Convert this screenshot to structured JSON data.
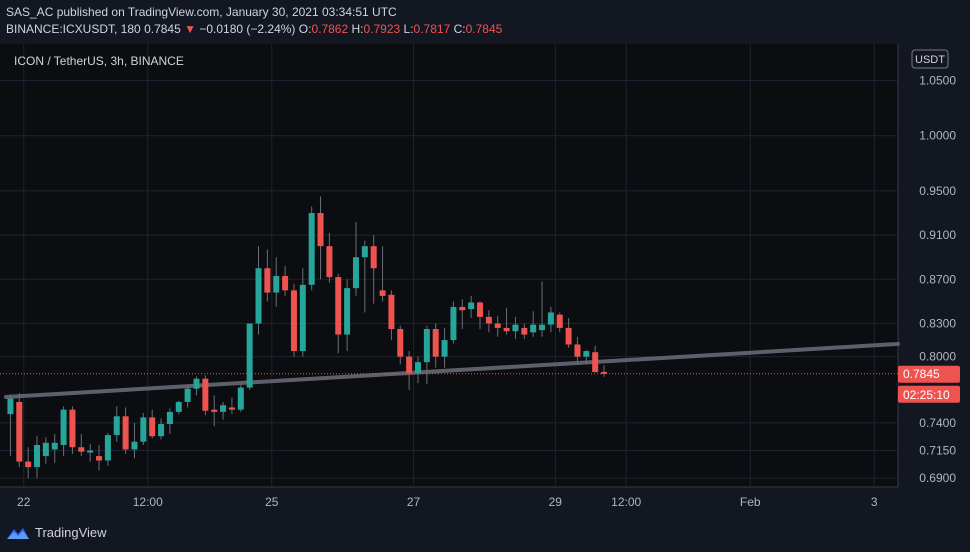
{
  "header": {
    "line1": "SAS_AC published on TradingView.com, January 30, 2021 03:34:51 UTC",
    "symbol": "BINANCE:ICXUSDT, 180",
    "last": "0.7845",
    "change_arrow": "▼",
    "change": "−0.0180 (−2.24%)",
    "o_label": "O:",
    "o_val": "0.7862",
    "h_label": "H:",
    "h_val": "0.7923",
    "l_label": "L:",
    "l_val": "0.7817",
    "c_label": "C:",
    "c_val": "0.7845"
  },
  "chart_data": {
    "type": "candlestick",
    "title": "ICON / TetherUS, 3h, BINANCE",
    "currency_badge": "USDT",
    "price_ticks": [
      "1.0500",
      "1.0000",
      "0.9500",
      "0.9100",
      "0.8700",
      "0.8300",
      "0.8000",
      "0.7400",
      "0.7150",
      "0.6900"
    ],
    "price_tick_values": [
      1.05,
      1.0,
      0.95,
      0.91,
      0.87,
      0.83,
      0.8,
      0.74,
      0.715,
      0.69
    ],
    "time_ticks": [
      "22",
      "12:00",
      "25",
      "27",
      "29",
      "12:00",
      "Feb",
      "3"
    ],
    "time_tick_index": [
      2,
      16,
      30,
      46,
      62,
      70,
      84,
      98
    ],
    "last_price_label": "0.7845",
    "countdown_label": "02:25:10",
    "last_price": 0.7845,
    "y_range": [
      0.682,
      1.083
    ],
    "x_range": [
      0,
      100
    ],
    "bull_color": "#26a69a",
    "bear_color": "#ef5350",
    "trendline": {
      "from": [
        0,
        0.7635
      ],
      "to": [
        100,
        0.8115
      ],
      "color": "#5d606b"
    },
    "candles": [
      {
        "i": 0.5,
        "o": 0.748,
        "h": 0.766,
        "l": 0.71,
        "c": 0.762
      },
      {
        "i": 1.5,
        "o": 0.759,
        "h": 0.767,
        "l": 0.7,
        "c": 0.705
      },
      {
        "i": 2.5,
        "o": 0.705,
        "h": 0.718,
        "l": 0.69,
        "c": 0.7
      },
      {
        "i": 3.5,
        "o": 0.7,
        "h": 0.728,
        "l": 0.69,
        "c": 0.72
      },
      {
        "i": 4.5,
        "o": 0.71,
        "h": 0.727,
        "l": 0.703,
        "c": 0.722
      },
      {
        "i": 5.5,
        "o": 0.716,
        "h": 0.73,
        "l": 0.704,
        "c": 0.722
      },
      {
        "i": 6.5,
        "o": 0.72,
        "h": 0.755,
        "l": 0.71,
        "c": 0.752
      },
      {
        "i": 7.5,
        "o": 0.752,
        "h": 0.755,
        "l": 0.712,
        "c": 0.718
      },
      {
        "i": 8.5,
        "o": 0.718,
        "h": 0.73,
        "l": 0.71,
        "c": 0.714
      },
      {
        "i": 9.5,
        "o": 0.714,
        "h": 0.721,
        "l": 0.705,
        "c": 0.715
      },
      {
        "i": 10.5,
        "o": 0.71,
        "h": 0.72,
        "l": 0.697,
        "c": 0.706
      },
      {
        "i": 11.5,
        "o": 0.706,
        "h": 0.731,
        "l": 0.701,
        "c": 0.729
      },
      {
        "i": 12.5,
        "o": 0.729,
        "h": 0.755,
        "l": 0.723,
        "c": 0.746
      },
      {
        "i": 13.5,
        "o": 0.746,
        "h": 0.754,
        "l": 0.712,
        "c": 0.716
      },
      {
        "i": 14.5,
        "o": 0.716,
        "h": 0.74,
        "l": 0.708,
        "c": 0.723
      },
      {
        "i": 15.5,
        "o": 0.723,
        "h": 0.749,
        "l": 0.72,
        "c": 0.745
      },
      {
        "i": 16.5,
        "o": 0.745,
        "h": 0.752,
        "l": 0.726,
        "c": 0.728
      },
      {
        "i": 17.5,
        "o": 0.728,
        "h": 0.744,
        "l": 0.725,
        "c": 0.739
      },
      {
        "i": 18.5,
        "o": 0.739,
        "h": 0.753,
        "l": 0.73,
        "c": 0.75
      },
      {
        "i": 19.5,
        "o": 0.75,
        "h": 0.76,
        "l": 0.748,
        "c": 0.759
      },
      {
        "i": 20.5,
        "o": 0.759,
        "h": 0.775,
        "l": 0.754,
        "c": 0.771
      },
      {
        "i": 21.5,
        "o": 0.771,
        "h": 0.782,
        "l": 0.765,
        "c": 0.78
      },
      {
        "i": 22.5,
        "o": 0.78,
        "h": 0.783,
        "l": 0.747,
        "c": 0.751
      },
      {
        "i": 23.5,
        "o": 0.752,
        "h": 0.765,
        "l": 0.737,
        "c": 0.75
      },
      {
        "i": 24.5,
        "o": 0.75,
        "h": 0.759,
        "l": 0.743,
        "c": 0.756
      },
      {
        "i": 25.5,
        "o": 0.754,
        "h": 0.763,
        "l": 0.748,
        "c": 0.752
      },
      {
        "i": 26.5,
        "o": 0.752,
        "h": 0.775,
        "l": 0.75,
        "c": 0.772
      },
      {
        "i": 27.5,
        "o": 0.772,
        "h": 0.83,
        "l": 0.77,
        "c": 0.83
      },
      {
        "i": 28.5,
        "o": 0.83,
        "h": 0.9,
        "l": 0.82,
        "c": 0.88
      },
      {
        "i": 29.5,
        "o": 0.88,
        "h": 0.897,
        "l": 0.85,
        "c": 0.858
      },
      {
        "i": 30.5,
        "o": 0.858,
        "h": 0.89,
        "l": 0.845,
        "c": 0.873
      },
      {
        "i": 31.5,
        "o": 0.873,
        "h": 0.882,
        "l": 0.855,
        "c": 0.86
      },
      {
        "i": 32.5,
        "o": 0.86,
        "h": 0.866,
        "l": 0.8,
        "c": 0.805
      },
      {
        "i": 33.5,
        "o": 0.805,
        "h": 0.88,
        "l": 0.8,
        "c": 0.865
      },
      {
        "i": 34.5,
        "o": 0.865,
        "h": 0.936,
        "l": 0.86,
        "c": 0.93
      },
      {
        "i": 35.5,
        "o": 0.93,
        "h": 0.945,
        "l": 0.87,
        "c": 0.9
      },
      {
        "i": 36.5,
        "o": 0.9,
        "h": 0.912,
        "l": 0.867,
        "c": 0.872
      },
      {
        "i": 37.5,
        "o": 0.872,
        "h": 0.875,
        "l": 0.803,
        "c": 0.82
      },
      {
        "i": 38.5,
        "o": 0.82,
        "h": 0.87,
        "l": 0.805,
        "c": 0.862
      },
      {
        "i": 39.5,
        "o": 0.862,
        "h": 0.922,
        "l": 0.855,
        "c": 0.89
      },
      {
        "i": 40.5,
        "o": 0.89,
        "h": 0.905,
        "l": 0.84,
        "c": 0.9
      },
      {
        "i": 41.5,
        "o": 0.9,
        "h": 0.91,
        "l": 0.848,
        "c": 0.88
      },
      {
        "i": 42.5,
        "o": 0.86,
        "h": 0.9,
        "l": 0.85,
        "c": 0.855
      },
      {
        "i": 43.5,
        "o": 0.856,
        "h": 0.86,
        "l": 0.815,
        "c": 0.825
      },
      {
        "i": 44.5,
        "o": 0.825,
        "h": 0.828,
        "l": 0.793,
        "c": 0.8
      },
      {
        "i": 45.5,
        "o": 0.8,
        "h": 0.805,
        "l": 0.77,
        "c": 0.785
      },
      {
        "i": 46.5,
        "o": 0.785,
        "h": 0.8,
        "l": 0.776,
        "c": 0.795
      },
      {
        "i": 47.5,
        "o": 0.795,
        "h": 0.828,
        "l": 0.775,
        "c": 0.825
      },
      {
        "i": 48.5,
        "o": 0.825,
        "h": 0.83,
        "l": 0.79,
        "c": 0.8
      },
      {
        "i": 49.5,
        "o": 0.8,
        "h": 0.826,
        "l": 0.79,
        "c": 0.815
      },
      {
        "i": 50.5,
        "o": 0.815,
        "h": 0.85,
        "l": 0.812,
        "c": 0.845
      },
      {
        "i": 51.5,
        "o": 0.845,
        "h": 0.852,
        "l": 0.825,
        "c": 0.842
      },
      {
        "i": 52.5,
        "o": 0.843,
        "h": 0.855,
        "l": 0.835,
        "c": 0.849
      },
      {
        "i": 53.5,
        "o": 0.849,
        "h": 0.85,
        "l": 0.825,
        "c": 0.836
      },
      {
        "i": 54.5,
        "o": 0.836,
        "h": 0.842,
        "l": 0.822,
        "c": 0.83
      },
      {
        "i": 55.5,
        "o": 0.83,
        "h": 0.837,
        "l": 0.818,
        "c": 0.826
      },
      {
        "i": 56.5,
        "o": 0.826,
        "h": 0.844,
        "l": 0.82,
        "c": 0.823
      },
      {
        "i": 57.5,
        "o": 0.823,
        "h": 0.836,
        "l": 0.816,
        "c": 0.829
      },
      {
        "i": 58.5,
        "o": 0.826,
        "h": 0.83,
        "l": 0.816,
        "c": 0.82
      },
      {
        "i": 59.5,
        "o": 0.822,
        "h": 0.841,
        "l": 0.818,
        "c": 0.829
      },
      {
        "i": 60.5,
        "o": 0.824,
        "h": 0.868,
        "l": 0.818,
        "c": 0.829
      },
      {
        "i": 61.5,
        "o": 0.829,
        "h": 0.845,
        "l": 0.822,
        "c": 0.84
      },
      {
        "i": 62.5,
        "o": 0.838,
        "h": 0.84,
        "l": 0.822,
        "c": 0.826
      },
      {
        "i": 63.5,
        "o": 0.826,
        "h": 0.835,
        "l": 0.808,
        "c": 0.811
      },
      {
        "i": 64.5,
        "o": 0.811,
        "h": 0.818,
        "l": 0.795,
        "c": 0.8
      },
      {
        "i": 65.5,
        "o": 0.8,
        "h": 0.806,
        "l": 0.793,
        "c": 0.805
      },
      {
        "i": 66.5,
        "o": 0.804,
        "h": 0.81,
        "l": 0.786,
        "c": 0.786
      },
      {
        "i": 67.5,
        "o": 0.7862,
        "h": 0.7923,
        "l": 0.7817,
        "c": 0.7845
      }
    ]
  }
}
